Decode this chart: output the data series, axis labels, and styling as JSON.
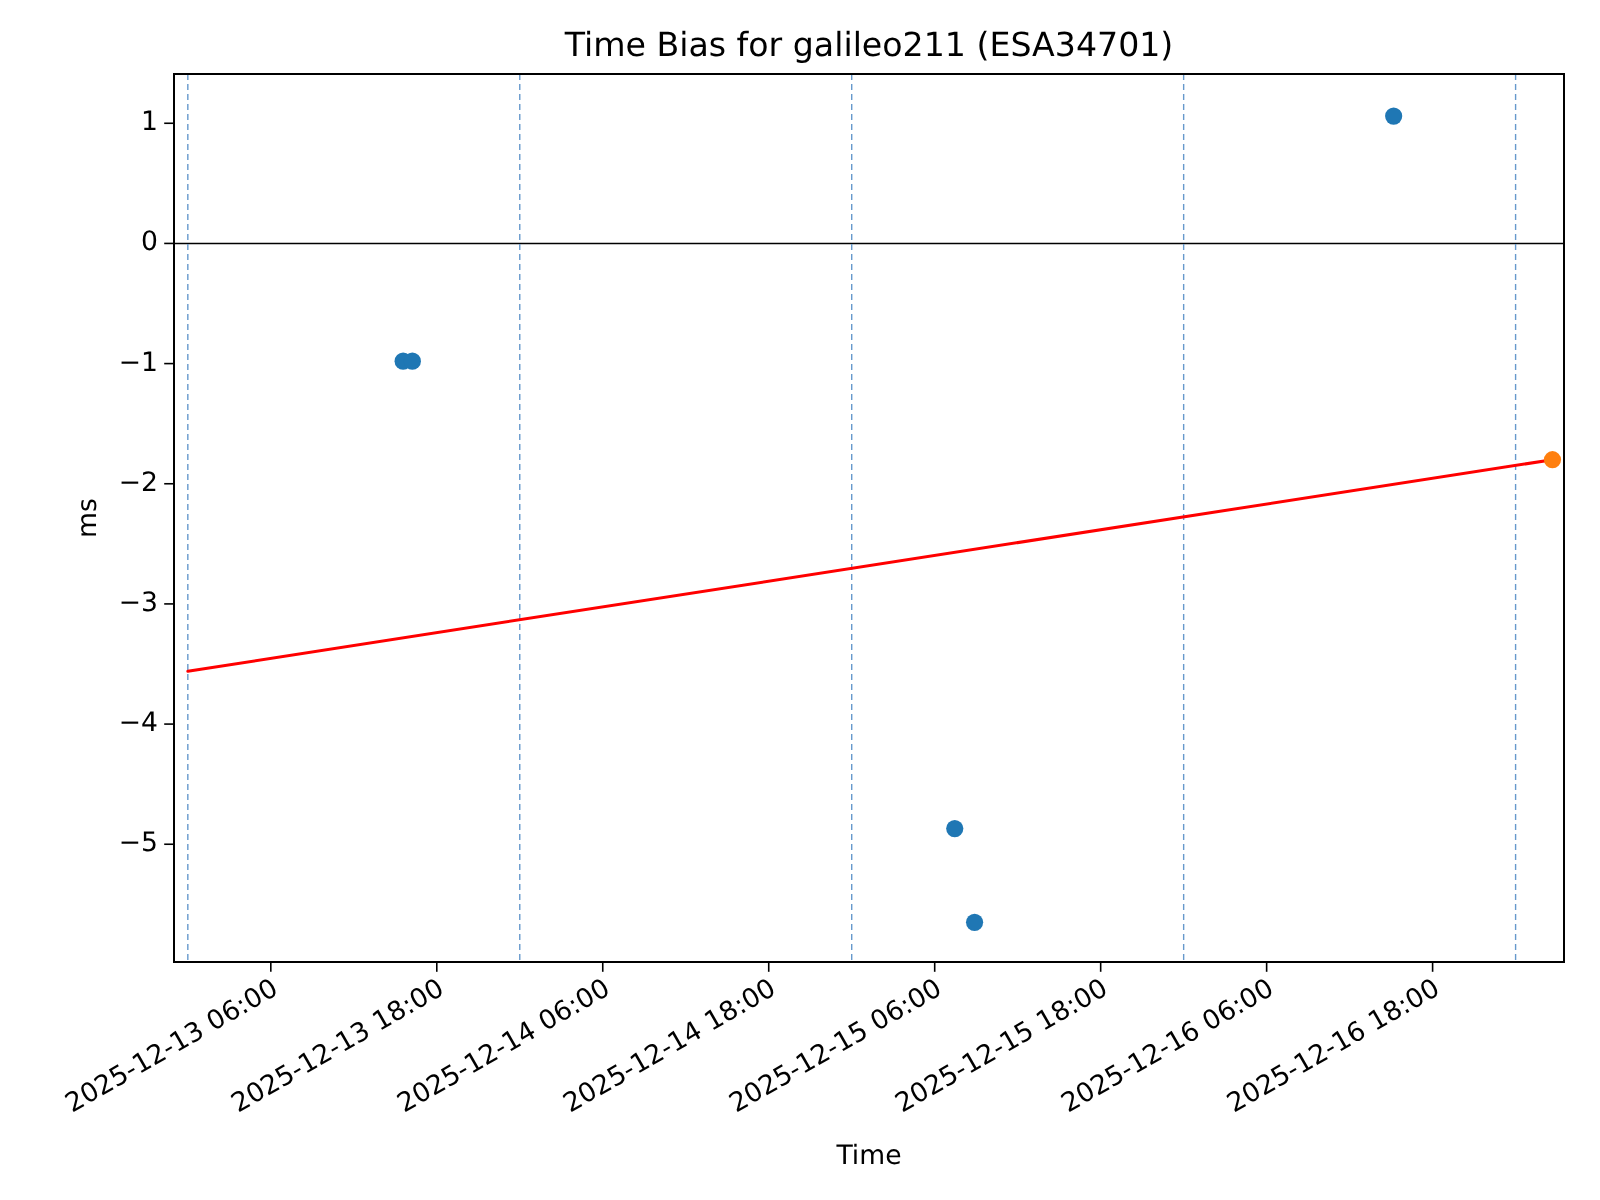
{
  "chart_data": {
    "type": "scatter",
    "title": "Time Bias for galileo211 (ESA34701)",
    "xlabel": "Time",
    "ylabel": "ms",
    "xlim": [
      "2025-12-12T23:00",
      "2025-12-17T03:30"
    ],
    "xticks": [
      {
        "value": "2025-12-13T06:00",
        "label": "2025-12-13 06:00"
      },
      {
        "value": "2025-12-13T18:00",
        "label": "2025-12-13 18:00"
      },
      {
        "value": "2025-12-14T06:00",
        "label": "2025-12-14 06:00"
      },
      {
        "value": "2025-12-14T18:00",
        "label": "2025-12-14 18:00"
      },
      {
        "value": "2025-12-15T06:00",
        "label": "2025-12-15 06:00"
      },
      {
        "value": "2025-12-15T18:00",
        "label": "2025-12-15 18:00"
      },
      {
        "value": "2025-12-16T06:00",
        "label": "2025-12-16 06:00"
      },
      {
        "value": "2025-12-16T18:00",
        "label": "2025-12-16 18:00"
      }
    ],
    "ylim": [
      -5.98,
      1.41
    ],
    "yticks": [
      -5,
      -4,
      -3,
      -2,
      -1,
      0,
      1
    ],
    "series": [
      {
        "color": "#1f77b4",
        "marker": "circle",
        "x": [
          "2025-12-13T15:34",
          "2025-12-13T16:14",
          "2025-12-15T07:27",
          "2025-12-15T08:53",
          "2025-12-16T15:11"
        ],
        "values": [
          -0.98,
          -0.98,
          -4.87,
          -5.65,
          1.06
        ]
      },
      {
        "type": "line",
        "color": "#ff0000",
        "x": [
          "2025-12-13T00:00",
          "2025-12-17T02:40"
        ],
        "values": [
          -3.56,
          -1.8
        ]
      },
      {
        "color": "#ff7f0e",
        "marker": "circle",
        "x": [
          "2025-12-17T02:40"
        ],
        "values": [
          -1.8
        ]
      }
    ],
    "ref_lines": [
      {
        "axis": "y",
        "value": 0,
        "color": "#000000",
        "line_style": "solid"
      },
      {
        "axis": "x",
        "value": "2025-12-13T00:00",
        "color": "#6699cc",
        "line_style": "dashed"
      },
      {
        "axis": "x",
        "value": "2025-12-14T00:00",
        "color": "#6699cc",
        "line_style": "dashed"
      },
      {
        "axis": "x",
        "value": "2025-12-15T00:00",
        "color": "#6699cc",
        "line_style": "dashed"
      },
      {
        "axis": "x",
        "value": "2025-12-16T00:00",
        "color": "#6699cc",
        "line_style": "dashed"
      },
      {
        "axis": "x",
        "value": "2025-12-17T00:00",
        "color": "#6699cc",
        "line_style": "dashed"
      }
    ]
  }
}
